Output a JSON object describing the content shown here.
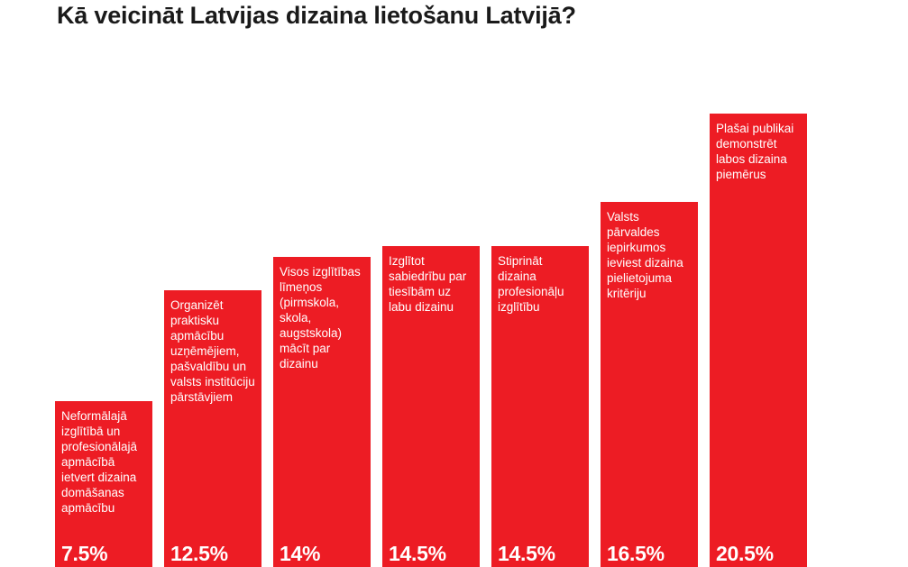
{
  "title": "Kā veicināt Latvijas dizaina lietošanu Latvijā?",
  "colors": {
    "bar": "#ed1c24",
    "label": "#ffffff",
    "title": "#1a1a1a"
  },
  "chart_data": {
    "type": "bar",
    "title": "Kā veicināt Latvijas dizaina lietošanu Latvijā?",
    "categories": [
      "Neformālajā izglītībā un profesionālajā apmācībā ietvert dizaina domāšanas apmācību",
      "Organizēt praktisku apmācību uzņēmējiem, pašvaldību un valsts institūciju pārstāvjiem",
      "Visos izglītības līmeņos (pirmskola, skola, augstskola) mācīt par dizainu",
      "Izglītot sabiedrību par tiesībām uz labu dizainu",
      "Stiprināt dizaina profesionāļu izglītību",
      "Valsts pārvaldes iepirkumos ieviest dizaina pielietojuma kritēriju",
      "Plašai publikai demonstrēt labos dizaina piemērus"
    ],
    "values": [
      7.5,
      12.5,
      14,
      14.5,
      14.5,
      16.5,
      20.5
    ],
    "value_labels": [
      "7.5%",
      "12.5%",
      "14%",
      "14.5%",
      "14.5%",
      "16.5%",
      "20.5%"
    ],
    "unit": "%",
    "xlabel": "",
    "ylabel": "",
    "ylim": [
      0,
      20.5
    ],
    "grid": false,
    "legend": "none"
  }
}
